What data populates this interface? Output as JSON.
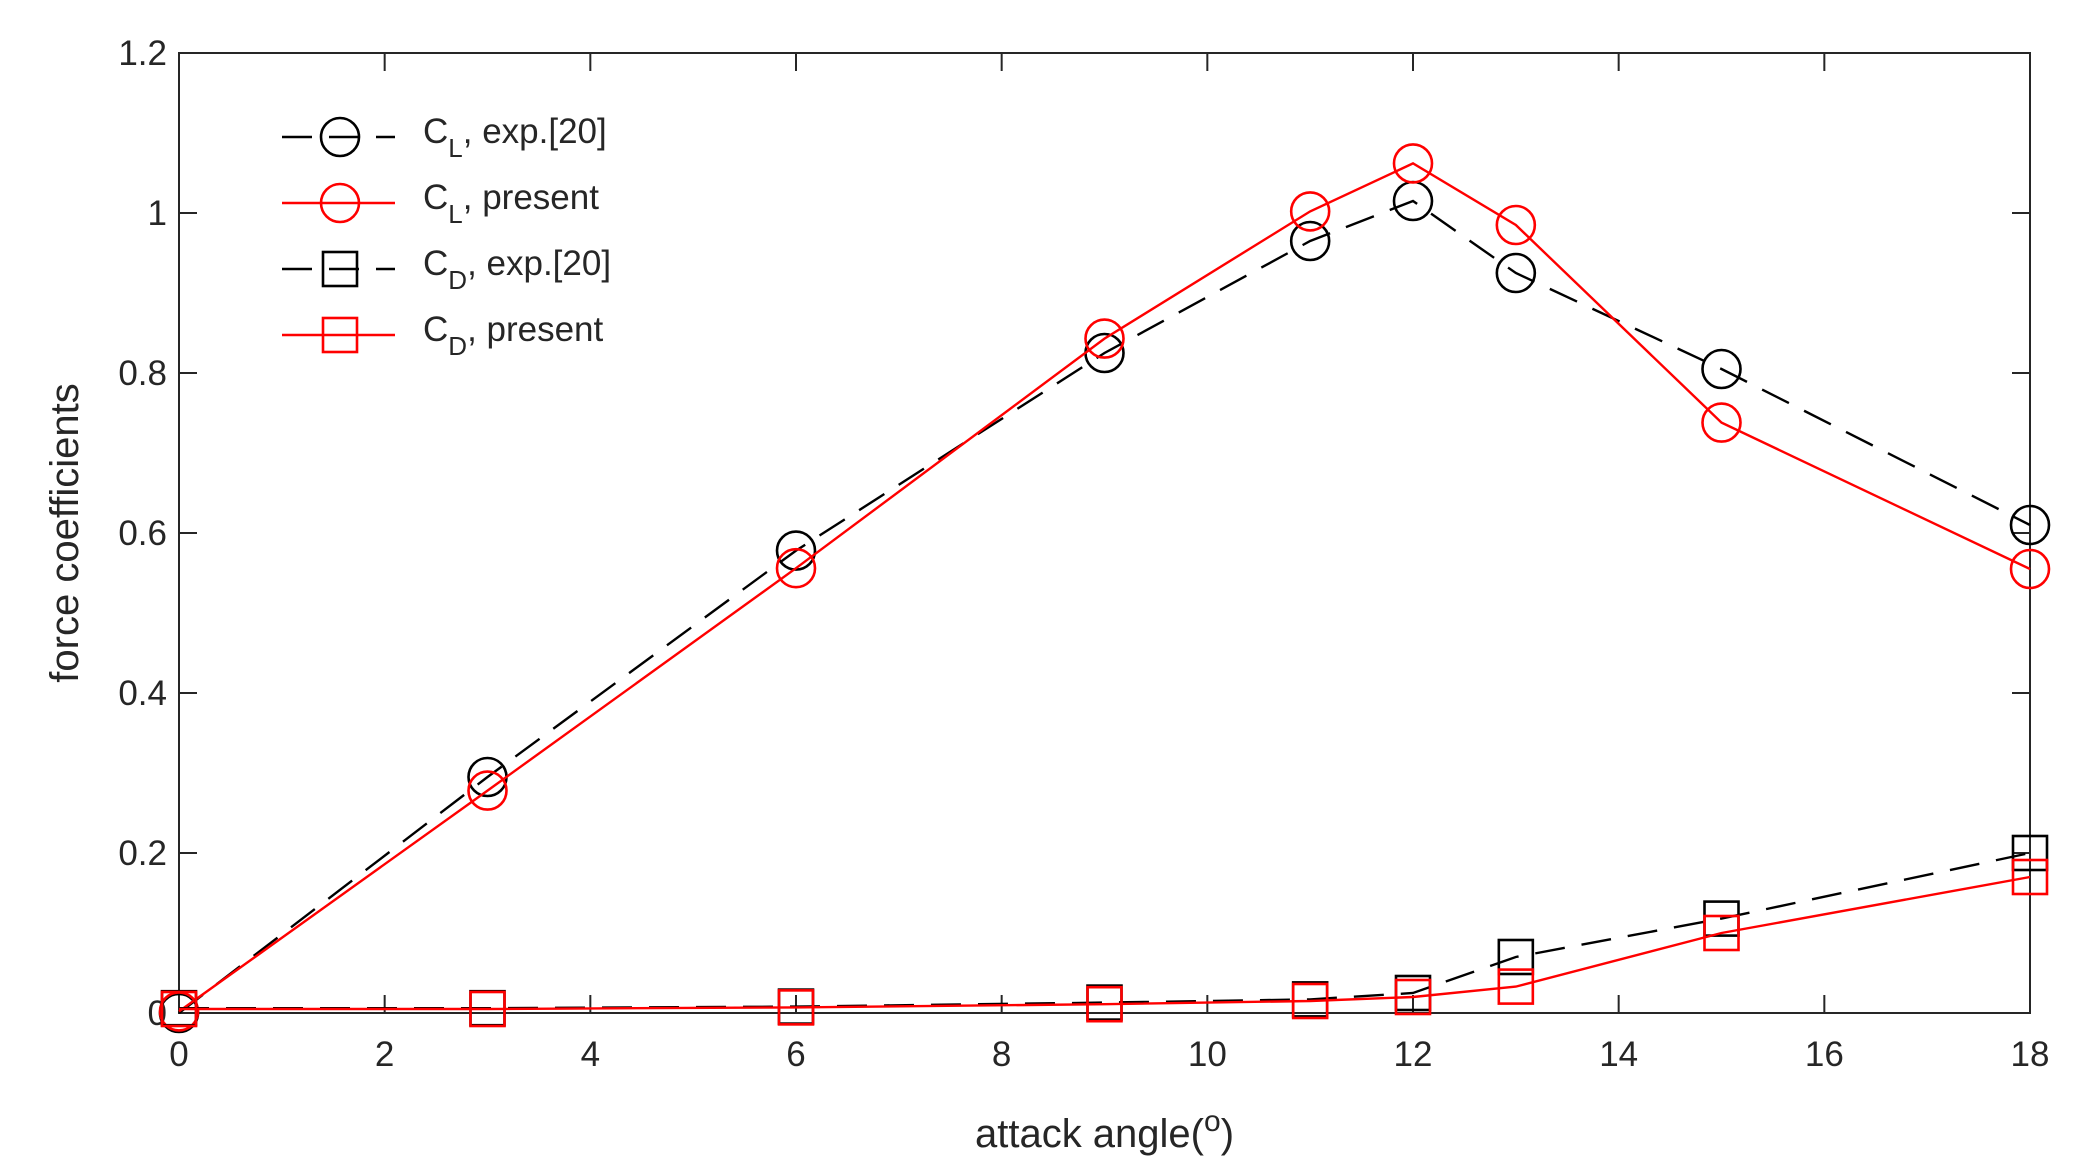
{
  "chart_data": {
    "type": "line",
    "title": "",
    "xlabel": "attack angle(",
    "xlabel_sup": "o",
    "xlabel_close": ")",
    "ylabel": "force coefficients",
    "xlim": [
      0,
      18
    ],
    "ylim": [
      0,
      1.2
    ],
    "xticks": [
      0,
      2,
      4,
      6,
      8,
      10,
      12,
      14,
      16,
      18
    ],
    "xtick_labels": [
      "0",
      "2",
      "4",
      "6",
      "8",
      "10",
      "12",
      "14",
      "16",
      "18"
    ],
    "yticks": [
      0,
      0.2,
      0.4,
      0.6,
      0.8,
      1.0,
      1.2
    ],
    "ytick_labels": [
      "0",
      "0.2",
      "0.4",
      "0.6",
      "0.8",
      "1",
      "1.2"
    ],
    "grid": false,
    "legend_position": "top-left",
    "series": [
      {
        "name": "CL exp",
        "legend_main": "C",
        "legend_sub": "L",
        "legend_rest": ", exp.[20]",
        "color": "#000000",
        "line_style": "dashed",
        "marker": "circle",
        "x": [
          0,
          3,
          6,
          9,
          11,
          12,
          13,
          15,
          18
        ],
        "y": [
          0.0,
          0.295,
          0.578,
          0.825,
          0.965,
          1.015,
          0.925,
          0.805,
          0.61
        ]
      },
      {
        "name": "CL present",
        "legend_main": "C",
        "legend_sub": "L",
        "legend_rest": ", present",
        "color": "#ff0000",
        "line_style": "solid",
        "marker": "circle",
        "x": [
          0,
          3,
          6,
          9,
          11,
          12,
          13,
          15,
          18
        ],
        "y": [
          0.002,
          0.278,
          0.556,
          0.843,
          1.002,
          1.062,
          0.985,
          0.738,
          0.555
        ]
      },
      {
        "name": "CD exp",
        "legend_main": "C",
        "legend_sub": "D",
        "legend_rest": ", exp.[20]",
        "color": "#000000",
        "line_style": "dashed",
        "marker": "square",
        "x": [
          0,
          3,
          6,
          9,
          11,
          12,
          13,
          15,
          18
        ],
        "y": [
          0.006,
          0.006,
          0.008,
          0.013,
          0.017,
          0.025,
          0.07,
          0.118,
          0.2
        ]
      },
      {
        "name": "CD present",
        "legend_main": "C",
        "legend_sub": "D",
        "legend_rest": ", present",
        "color": "#ff0000",
        "line_style": "solid",
        "marker": "square",
        "x": [
          0,
          3,
          6,
          9,
          11,
          12,
          13,
          15,
          18
        ],
        "y": [
          0.005,
          0.005,
          0.007,
          0.011,
          0.015,
          0.02,
          0.033,
          0.1,
          0.17
        ]
      }
    ]
  }
}
